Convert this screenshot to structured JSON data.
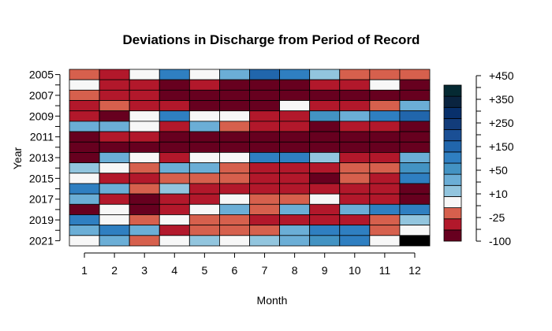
{
  "chart_data": {
    "type": "heatmap",
    "title": "Deviations in Discharge from Period of Record",
    "xlabel": "Month",
    "ylabel": "Year",
    "x_tick_labels": [
      "1",
      "2",
      "3",
      "4",
      "5",
      "6",
      "7",
      "8",
      "9",
      "10",
      "11",
      "12"
    ],
    "years": [
      2005,
      2006,
      2007,
      2008,
      2009,
      2010,
      2011,
      2012,
      2013,
      2014,
      2015,
      2016,
      2017,
      2018,
      2019,
      2020,
      2021
    ],
    "y_tick_labels": [
      "2005",
      "2007",
      "2009",
      "2011",
      "2013",
      "2015",
      "2017",
      "2019",
      "2021"
    ],
    "color_scale": {
      "colors": [
        "#67001f",
        "#b2182b",
        "#d6604d",
        "#f7f7f7",
        "#92c5de",
        "#6baed6",
        "#4393c3",
        "#2f7fc1",
        "#2166ac",
        "#1a4f95",
        "#123c7a",
        "#08306b",
        "#0a2440",
        "#052a33"
      ],
      "tick_labels": [
        "-100",
        "-25",
        "+10",
        "+50",
        "+150",
        "+250",
        "+350",
        "+450"
      ]
    },
    "special_colors": {
      "missing": "#000000"
    },
    "legend_position": "right",
    "grid": false,
    "category_index_grid": [
      [
        2,
        1,
        3,
        7,
        3,
        5,
        8,
        7,
        4,
        2,
        2,
        2
      ],
      [
        3,
        1,
        1,
        0,
        1,
        0,
        0,
        0,
        1,
        1,
        3,
        0
      ],
      [
        2,
        1,
        1,
        0,
        0,
        0,
        0,
        0,
        0,
        0,
        0,
        0
      ],
      [
        1,
        2,
        1,
        1,
        0,
        0,
        0,
        3,
        1,
        1,
        2,
        5
      ],
      [
        1,
        0,
        3,
        7,
        3,
        3,
        1,
        1,
        6,
        5,
        7,
        8
      ],
      [
        5,
        5,
        3,
        1,
        5,
        2,
        1,
        1,
        0,
        1,
        1,
        0
      ],
      [
        0,
        1,
        1,
        0,
        0,
        0,
        0,
        0,
        0,
        0,
        0,
        0
      ],
      [
        0,
        0,
        0,
        0,
        0,
        0,
        0,
        0,
        0,
        0,
        0,
        0
      ],
      [
        0,
        5,
        3,
        1,
        3,
        3,
        7,
        7,
        4,
        1,
        1,
        5
      ],
      [
        4,
        3,
        2,
        5,
        5,
        2,
        1,
        1,
        1,
        2,
        2,
        6
      ],
      [
        3,
        1,
        1,
        2,
        2,
        2,
        1,
        1,
        0,
        2,
        1,
        7
      ],
      [
        7,
        5,
        2,
        4,
        1,
        1,
        1,
        1,
        1,
        1,
        1,
        0
      ],
      [
        5,
        1,
        0,
        1,
        1,
        3,
        2,
        2,
        3,
        1,
        1,
        0
      ],
      [
        0,
        3,
        0,
        1,
        3,
        5,
        2,
        5,
        1,
        5,
        7,
        7
      ],
      [
        7,
        3,
        2,
        3,
        2,
        2,
        1,
        1,
        1,
        1,
        2,
        4
      ],
      [
        5,
        7,
        5,
        1,
        2,
        2,
        2,
        5,
        7,
        7,
        2,
        3
      ],
      [
        3,
        5,
        2,
        3,
        4,
        3,
        4,
        5,
        6,
        7,
        3,
        -1
      ]
    ]
  }
}
